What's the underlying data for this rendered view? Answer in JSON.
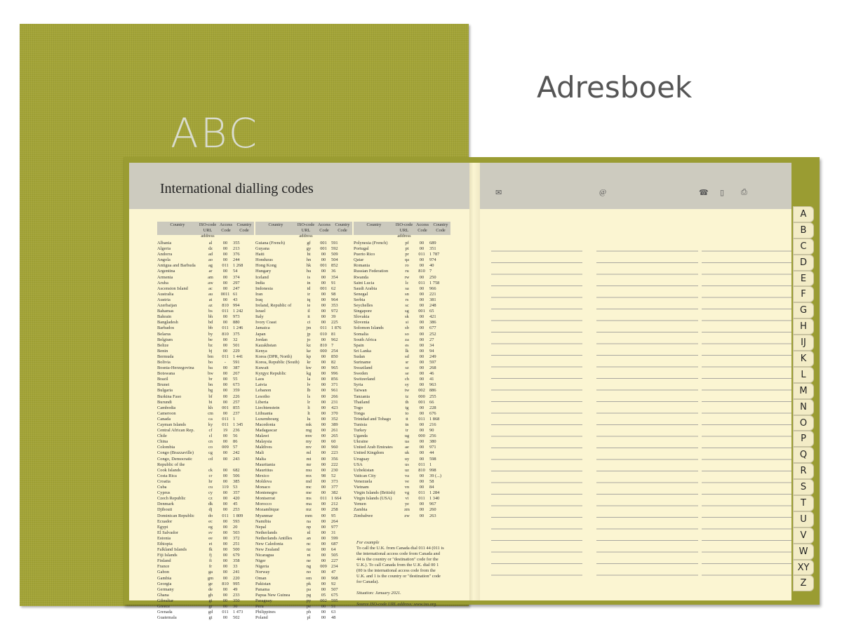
{
  "cover": {
    "title": "ABC",
    "color": "#a3a437"
  },
  "brand": "Adresboek",
  "left_page": {
    "title": "International dialling codes",
    "headers": [
      "Country",
      "ISO-code URL address",
      "Access Code",
      "Country Code"
    ],
    "columns": [
      [
        [
          "Albania",
          "al",
          "00",
          "355"
        ],
        [
          "Algeria",
          "dz",
          "00",
          "213"
        ],
        [
          "Andorra",
          "ad",
          "00",
          "376"
        ],
        [
          "Angola",
          "ao",
          "00",
          "244"
        ],
        [
          "Antigua and Barbuda",
          "ag",
          "011",
          "1 268"
        ],
        [
          "Argentina",
          "ar",
          "00",
          "54"
        ],
        [
          "Armenia",
          "am",
          "00",
          "374"
        ],
        [
          "Aruba",
          "aw",
          "00",
          "297"
        ],
        [
          "Ascension Island",
          "ac",
          "00",
          "247"
        ],
        [
          "Australia",
          "au",
          "0011",
          "61"
        ],
        [
          "Austria",
          "at",
          "00",
          "43"
        ],
        [
          "Azerbaijan",
          "az",
          "810",
          "994"
        ],
        [
          "Bahamas",
          "bs",
          "011",
          "1 242"
        ],
        [
          "Bahrain",
          "bh",
          "00",
          "973"
        ],
        [
          "Bangladesh",
          "bd",
          "00",
          "880"
        ],
        [
          "Barbados",
          "bb",
          "011",
          "1 246"
        ],
        [
          "Belarus",
          "by",
          "810",
          "375"
        ],
        [
          "Belgium",
          "be",
          "00",
          "32"
        ],
        [
          "Belize",
          "bz",
          "00",
          "501"
        ],
        [
          "Benin",
          "bj",
          "00",
          "229"
        ],
        [
          "Bermuda",
          "bm",
          "011",
          "1 441"
        ],
        [
          "Bolivia",
          "bo",
          "-",
          "591"
        ],
        [
          "Bosnia-Herzegovina",
          "ba",
          "00",
          "387"
        ],
        [
          "Botswana",
          "bw",
          "00",
          "267"
        ],
        [
          "Brazil",
          "br",
          "00",
          "55"
        ],
        [
          "Brunei",
          "bn",
          "00",
          "673"
        ],
        [
          "Bulgaria",
          "bg",
          "00",
          "359"
        ],
        [
          "Burkina Faso",
          "bf",
          "00",
          "226"
        ],
        [
          "Burundi",
          "bi",
          "00",
          "257"
        ],
        [
          "Cambodia",
          "kh",
          "001",
          "855"
        ],
        [
          "Cameroon",
          "cm",
          "00",
          "237"
        ],
        [
          "Canada",
          "ca",
          "011",
          "1"
        ],
        [
          "Cayman Islands",
          "ky",
          "011",
          "1 345"
        ],
        [
          "Central African Rep.",
          "cf",
          "19",
          "236"
        ],
        [
          "Chile",
          "cl",
          "00",
          "56"
        ],
        [
          "China",
          "cn",
          "00",
          "86"
        ],
        [
          "Colombia",
          "co",
          "009",
          "57"
        ],
        [
          "Congo (Brazzaville)",
          "cg",
          "00",
          "242"
        ],
        [
          "Congo, Democratic\n  Republic of the",
          "cd",
          "00",
          "243"
        ],
        [
          "Cook Islands",
          "ck",
          "00",
          "682"
        ],
        [
          "Costa Rica",
          "cr",
          "00",
          "506"
        ],
        [
          "Croatia",
          "hr",
          "00",
          "385"
        ],
        [
          "Cuba",
          "cu",
          "119",
          "53"
        ],
        [
          "Cyprus",
          "cy",
          "00",
          "357"
        ],
        [
          "Czech Republic",
          "cz",
          "00",
          "420"
        ],
        [
          "Denmark",
          "dk",
          "00",
          "45"
        ],
        [
          "Djibouti",
          "dj",
          "00",
          "253"
        ],
        [
          "Dominican Republic",
          "do",
          "011",
          "1 809"
        ],
        [
          "Ecuador",
          "ec",
          "00",
          "593"
        ],
        [
          "Egypt",
          "eg",
          "00",
          "20"
        ],
        [
          "El Salvador",
          "sv",
          "00",
          "503"
        ],
        [
          "Estonia",
          "ee",
          "00",
          "372"
        ],
        [
          "Ethiopia",
          "et",
          "00",
          "251"
        ],
        [
          "Falkland Islands",
          "fk",
          "00",
          "500"
        ],
        [
          "Fiji Islands",
          "fj",
          "00",
          "679"
        ],
        [
          "Finland",
          "fi",
          "00",
          "358"
        ],
        [
          "France",
          "fr",
          "00",
          "33"
        ],
        [
          "Gabon",
          "ga",
          "00",
          "241"
        ],
        [
          "Gambia",
          "gm",
          "00",
          "220"
        ],
        [
          "Georgia",
          "ge",
          "810",
          "995"
        ],
        [
          "Germany",
          "de",
          "00",
          "49"
        ],
        [
          "Ghana",
          "gh",
          "00",
          "233"
        ],
        [
          "Gibraltar",
          "gi",
          "00",
          "350"
        ],
        [
          "Greece",
          "gr",
          "00",
          "30"
        ],
        [
          "Grenada",
          "gd",
          "011",
          "1 473"
        ],
        [
          "Guatemala",
          "gt",
          "00",
          "502"
        ]
      ],
      [
        [
          "Guiana (French)",
          "gf",
          "001",
          "591"
        ],
        [
          "Guyana",
          "gy",
          "001",
          "592"
        ],
        [
          "Haiti",
          "ht",
          "00",
          "509"
        ],
        [
          "Honduras",
          "hn",
          "00",
          "504"
        ],
        [
          "Hong Kong",
          "hk",
          "001",
          "852"
        ],
        [
          "Hungary",
          "hu",
          "00",
          "36"
        ],
        [
          "Iceland",
          "is",
          "00",
          "354"
        ],
        [
          "India",
          "in",
          "00",
          "91"
        ],
        [
          "Indonesia",
          "id",
          "001",
          "62"
        ],
        [
          "Iran",
          "ir",
          "00",
          "98"
        ],
        [
          "Iraq",
          "iq",
          "00",
          "964"
        ],
        [
          "Ireland, Republic of",
          "ie",
          "00",
          "353"
        ],
        [
          "Israel",
          "il",
          "00",
          "972"
        ],
        [
          "Italy",
          "it",
          "00",
          "39"
        ],
        [
          "Ivory Coast",
          "ci",
          "00",
          "225"
        ],
        [
          "Jamaica",
          "jm",
          "011",
          "1 876"
        ],
        [
          "Japan",
          "jp",
          "010",
          "81"
        ],
        [
          "Jordan",
          "jo",
          "00",
          "962"
        ],
        [
          "Kazakhstan",
          "kz",
          "810",
          "7"
        ],
        [
          "Kenya",
          "ke",
          "000",
          "254"
        ],
        [
          "Korea (DPR, North)",
          "kp",
          "00",
          "850"
        ],
        [
          "Korea, Republic (South)",
          "kr",
          "00",
          "82"
        ],
        [
          "Kuwait",
          "kw",
          "00",
          "965"
        ],
        [
          "Kyrgyz Republic",
          "kg",
          "00",
          "996"
        ],
        [
          "Laos",
          "la",
          "00",
          "856"
        ],
        [
          "Latvia",
          "lv",
          "00",
          "371"
        ],
        [
          "Lebanon",
          "lb",
          "00",
          "961"
        ],
        [
          "Lesotho",
          "ls",
          "00",
          "266"
        ],
        [
          "Liberia",
          "lr",
          "00",
          "231"
        ],
        [
          "Liechtenstein",
          "li",
          "00",
          "423"
        ],
        [
          "Lithuania",
          "lt",
          "00",
          "370"
        ],
        [
          "Luxembourg",
          "lu",
          "00",
          "352"
        ],
        [
          "Macedonia",
          "mk",
          "00",
          "389"
        ],
        [
          "Madagascar",
          "mg",
          "00",
          "261"
        ],
        [
          "Malawi",
          "mw",
          "00",
          "265"
        ],
        [
          "Malaysia",
          "my",
          "00",
          "60"
        ],
        [
          "Maldives",
          "mv",
          "00",
          "960"
        ],
        [
          "Mali",
          "ml",
          "00",
          "223"
        ],
        [
          "Malta",
          "mt",
          "00",
          "356"
        ],
        [
          "Mauritania",
          "mr",
          "00",
          "222"
        ],
        [
          "Mauritius",
          "mu",
          "00",
          "230"
        ],
        [
          "Mexico",
          "mx",
          "98",
          "52"
        ],
        [
          "Moldova",
          "md",
          "00",
          "373"
        ],
        [
          "Monaco",
          "mc",
          "00",
          "377"
        ],
        [
          "Montenegro",
          "me",
          "00",
          "382"
        ],
        [
          "Montserrat",
          "ms",
          "011",
          "1 664"
        ],
        [
          "Morocco",
          "ma",
          "00",
          "212"
        ],
        [
          "Mozambique",
          "mz",
          "00",
          "258"
        ],
        [
          "Myanmar",
          "mm",
          "00",
          "95"
        ],
        [
          "Namibia",
          "na",
          "00",
          "264"
        ],
        [
          "Nepal",
          "np",
          "00",
          "977"
        ],
        [
          "Netherlands",
          "nl",
          "00",
          "31"
        ],
        [
          "Netherlands Antilles",
          "an",
          "00",
          "599"
        ],
        [
          "New Caledonia",
          "nc",
          "00",
          "687"
        ],
        [
          "New Zealand",
          "nz",
          "00",
          "64"
        ],
        [
          "Nicaragua",
          "ni",
          "00",
          "505"
        ],
        [
          "Niger",
          "ne",
          "00",
          "227"
        ],
        [
          "Nigeria",
          "ng",
          "009",
          "234"
        ],
        [
          "Norway",
          "no",
          "00",
          "47"
        ],
        [
          "Oman",
          "om",
          "00",
          "968"
        ],
        [
          "Pakistan",
          "pk",
          "00",
          "92"
        ],
        [
          "Panama",
          "pa",
          "00",
          "507"
        ],
        [
          "Papua New Guinea",
          "pg",
          "05",
          "675"
        ],
        [
          "Paraguay",
          "py",
          "002",
          "595"
        ],
        [
          "Peru",
          "pe",
          "00",
          "51"
        ],
        [
          "Philippines",
          "ph",
          "00",
          "63"
        ],
        [
          "Poland",
          "pl",
          "00",
          "48"
        ]
      ],
      [
        [
          "Polynesia (French)",
          "pf",
          "00",
          "689"
        ],
        [
          "Portugal",
          "pt",
          "00",
          "351"
        ],
        [
          "Puerto Rico",
          "pr",
          "011",
          "1 787"
        ],
        [
          "Qatar",
          "qa",
          "00",
          "974"
        ],
        [
          "Romania",
          "ro",
          "00",
          "40"
        ],
        [
          "Russian Federation",
          "ru",
          "810",
          "7"
        ],
        [
          "Rwanda",
          "rw",
          "00",
          "250"
        ],
        [
          "Saint Lucia",
          "lc",
          "011",
          "1 758"
        ],
        [
          "Saudi Arabia",
          "sa",
          "00",
          "966"
        ],
        [
          "Senegal",
          "sn",
          "00",
          "221"
        ],
        [
          "Serbia",
          "rs",
          "00",
          "381"
        ],
        [
          "Seychelles",
          "sc",
          "00",
          "248"
        ],
        [
          "Singapore",
          "sg",
          "001",
          "65"
        ],
        [
          "Slovakia",
          "sk",
          "00",
          "421"
        ],
        [
          "Slovenia",
          "si",
          "00",
          "386"
        ],
        [
          "Solomon Islands",
          "sb",
          "00",
          "677"
        ],
        [
          "Somalia",
          "so",
          "00",
          "252"
        ],
        [
          "South Africa",
          "za",
          "00",
          "27"
        ],
        [
          "Spain",
          "es",
          "00",
          "34"
        ],
        [
          "Sri Lanka",
          "lk",
          "00",
          "94"
        ],
        [
          "Sudan",
          "sd",
          "00",
          "249"
        ],
        [
          "Suriname",
          "sr",
          "00",
          "597"
        ],
        [
          "Swaziland",
          "sz",
          "00",
          "268"
        ],
        [
          "Sweden",
          "se",
          "00",
          "46"
        ],
        [
          "Switzerland",
          "ch",
          "00",
          "41"
        ],
        [
          "Syria",
          "sy",
          "00",
          "963"
        ],
        [
          "Taiwan",
          "tw",
          "002",
          "886"
        ],
        [
          "Tanzania",
          "tz",
          "000",
          "255"
        ],
        [
          "Thailand",
          "th",
          "001",
          "66"
        ],
        [
          "Togo",
          "tg",
          "00",
          "228"
        ],
        [
          "Tonga",
          "to",
          "00",
          "676"
        ],
        [
          "Trinidad and Tobago",
          "tt",
          "011",
          "1 868"
        ],
        [
          "Tunisia",
          "tn",
          "00",
          "216"
        ],
        [
          "Turkey",
          "tr",
          "00",
          "90"
        ],
        [
          "Uganda",
          "ug",
          "000",
          "256"
        ],
        [
          "Ukraine",
          "ua",
          "00",
          "380"
        ],
        [
          "United Arab Emirates",
          "ae",
          "00",
          "971"
        ],
        [
          "United Kingdom",
          "uk",
          "00",
          "44"
        ],
        [
          "Uruguay",
          "uy",
          "00",
          "598"
        ],
        [
          "USA",
          "us",
          "011",
          "1"
        ],
        [
          "Uzbekistan",
          "uz",
          "810",
          "998"
        ],
        [
          "Vatican City",
          "va",
          "00",
          "39 (...)"
        ],
        [
          "Venezuela",
          "ve",
          "00",
          "58"
        ],
        [
          "Vietnam",
          "vn",
          "00",
          "84"
        ],
        [
          "Virgin Islands (British)",
          "vg",
          "011",
          "1 284"
        ],
        [
          "Virgin Islands (USA)",
          "vi",
          "011",
          "1 340"
        ],
        [
          "Yemen",
          "ye",
          "00",
          "967"
        ],
        [
          "Zambia",
          "zm",
          "00",
          "260"
        ],
        [
          "Zimbabwe",
          "zw",
          "00",
          "263"
        ]
      ]
    ],
    "note": {
      "heading": "For example",
      "text": "To call the U.K. from Canada dial 011 44 (011 is the international access code from Canada and 44 is the country or \"destination\" code for the U.K.). To call Canada from the U.K. dial 00 1 (00 is the international access code from the U.K. and 1 is the country or \"destination\" code for Canada).",
      "situation": "Situation: January 2021.",
      "source": "Source ISO-code URL address: www.iso.org."
    }
  },
  "right_page": {
    "icons": [
      "envelope-icon",
      "at-sign-icon",
      "telephone-icon",
      "mobile-phone-icon",
      "fax-icon"
    ],
    "tabs": [
      "A",
      "B",
      "C",
      "D",
      "E",
      "F",
      "G",
      "H",
      "IJ",
      "K",
      "L",
      "M",
      "N",
      "O",
      "P",
      "Q",
      "R",
      "S",
      "T",
      "U",
      "V",
      "W",
      "XY",
      "Z"
    ]
  }
}
